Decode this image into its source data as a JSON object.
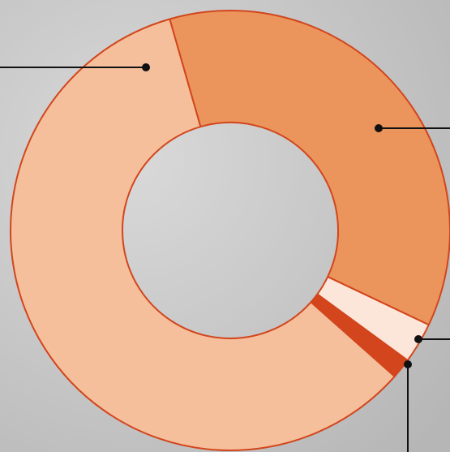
{
  "chart_data": {
    "type": "donut",
    "values": [
      36.5,
      3,
      1.5,
      59
    ],
    "colors": [
      "#eb955d",
      "#fce6da",
      "#d3451c",
      "#f5bf9c"
    ],
    "stroke": "#d3451c"
  }
}
